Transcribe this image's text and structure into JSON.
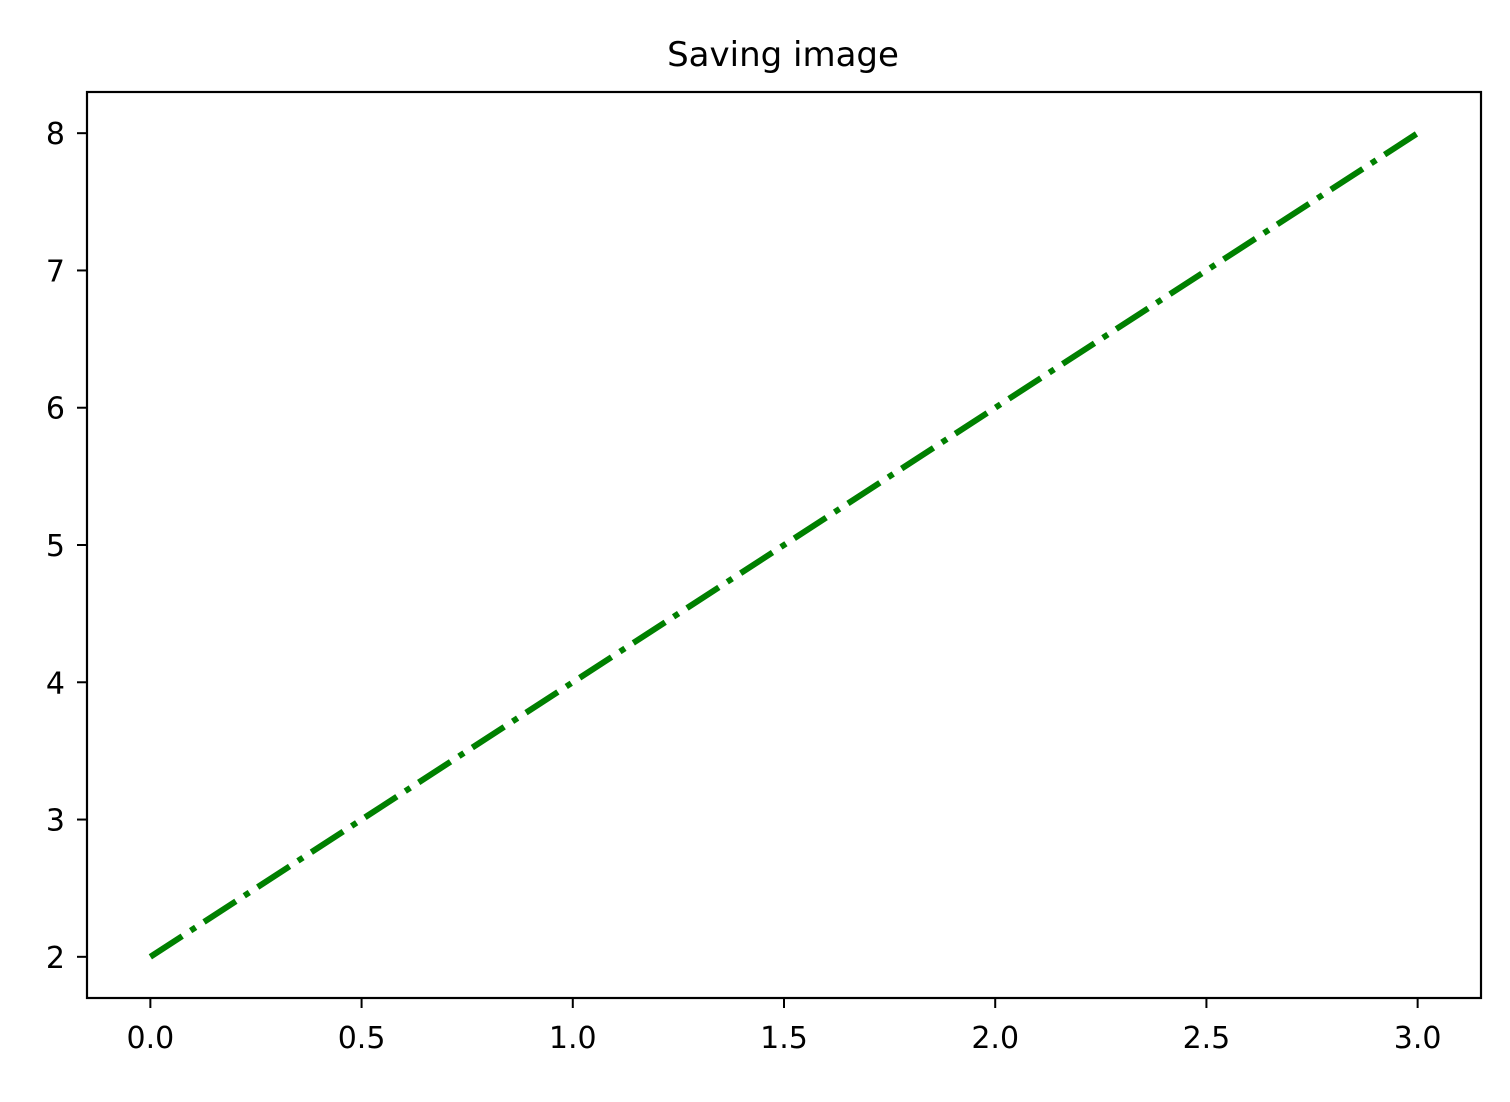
{
  "chart_data": {
    "type": "line",
    "title": "Saving image",
    "xlabel": "",
    "ylabel": "",
    "xlim": [
      -0.15,
      3.15
    ],
    "ylim": [
      1.7,
      8.3
    ],
    "x_ticks": [
      0.0,
      0.5,
      1.0,
      1.5,
      2.0,
      2.5,
      3.0
    ],
    "x_tick_labels": [
      "0.0",
      "0.5",
      "1.0",
      "1.5",
      "2.0",
      "2.5",
      "3.0"
    ],
    "y_ticks": [
      2,
      3,
      4,
      5,
      6,
      7,
      8
    ],
    "y_tick_labels": [
      "2",
      "3",
      "4",
      "5",
      "6",
      "7",
      "8"
    ],
    "grid": false,
    "legend": false,
    "series": [
      {
        "color": "#008000",
        "line_style": "dash-dot",
        "x": [
          0,
          1,
          2,
          3
        ],
        "y": [
          2,
          4,
          6,
          8
        ]
      }
    ]
  }
}
